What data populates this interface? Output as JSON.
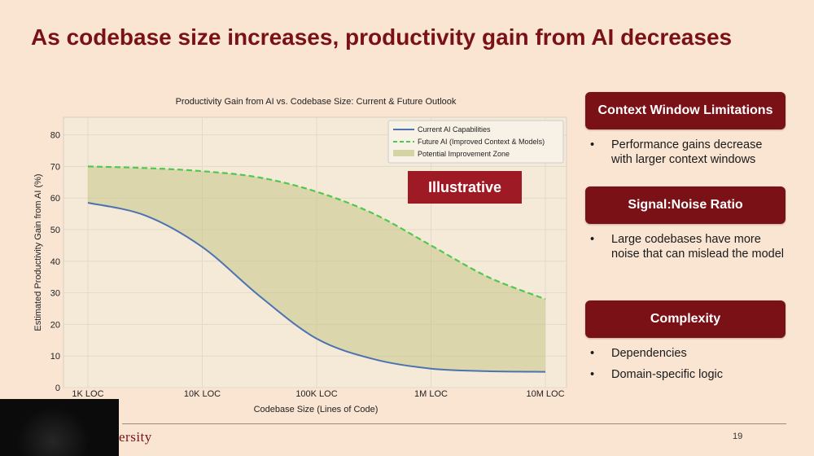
{
  "slide": {
    "title": "As codebase size increases, productivity gain from AI decreases",
    "page_number": "19",
    "logo_text": "ersity"
  },
  "chart_data": {
    "type": "area",
    "title": "Productivity Gain from AI vs. Codebase Size: Current & Future Outlook",
    "xlabel": "Codebase Size (Lines of Code)",
    "ylabel": "Estimated Productivity Gain from AI (%)",
    "x_scale": "log",
    "x_ticks": [
      "1K LOC",
      "10K LOC",
      "100K LOC",
      "1M LOC",
      "10M LOC"
    ],
    "y_ticks": [
      0,
      10,
      20,
      30,
      40,
      50,
      60,
      70,
      80
    ],
    "ylim": [
      0,
      85
    ],
    "grid": true,
    "legend_position": "top-right",
    "annotation": "Illustrative",
    "series": [
      {
        "name": "Current AI Capabilities",
        "style": "solid",
        "color": "#4c72b0",
        "x": [
          1000,
          3162,
          10000,
          31623,
          100000,
          316228,
          1000000,
          3162278,
          10000000
        ],
        "values": [
          58.5,
          54.5,
          44.5,
          29,
          15.5,
          9,
          6,
          5.2,
          5
        ]
      },
      {
        "name": "Future AI (Improved Context & Models)",
        "style": "dashed",
        "color": "#4ec94e",
        "x": [
          1000,
          3162,
          10000,
          31623,
          100000,
          316228,
          1000000,
          3162278,
          10000000
        ],
        "values": [
          70,
          69.5,
          68.5,
          66.5,
          62,
          55,
          45,
          35,
          28
        ]
      }
    ],
    "band": {
      "name": "Potential Improvement Zone",
      "between": [
        "Current AI Capabilities",
        "Future AI (Improved Context & Models)"
      ],
      "color": "#c6c58a"
    }
  },
  "sections": [
    {
      "header": "Context Window Limitations",
      "bullets": [
        "Performance gains decrease with larger context windows"
      ]
    },
    {
      "header": "Signal:Noise Ratio",
      "bullets": [
        "Large codebases have more noise that can mislead the model"
      ]
    },
    {
      "header": "Complexity",
      "bullets": [
        "Dependencies",
        "Domain-specific logic"
      ]
    }
  ],
  "colors": {
    "accent": "#7a1116",
    "background": "#fae5d2",
    "plot_background": "#f5ead8"
  }
}
